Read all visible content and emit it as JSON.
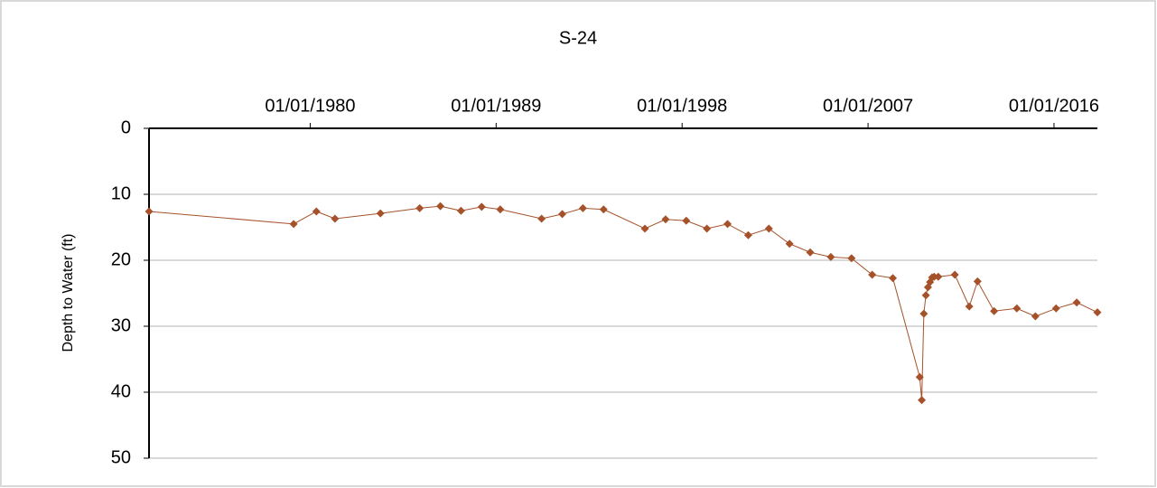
{
  "chart_data": {
    "type": "line",
    "title": "S-24",
    "y_label": "Depth to Water (ft)",
    "x_axis_position": "top",
    "y_inverted": true,
    "grid": true,
    "xlim": [
      1972.2,
      2018.1
    ],
    "xticks": [
      {
        "value": 1980,
        "label": "01/01/1980"
      },
      {
        "value": 1989,
        "label": "01/01/1989"
      },
      {
        "value": 1998,
        "label": "01/01/1998"
      },
      {
        "value": 2007,
        "label": "01/01/2007"
      },
      {
        "value": 2016,
        "label": "01/01/2016"
      }
    ],
    "ylim": [
      0,
      50
    ],
    "yticks": [
      0,
      10,
      20,
      30,
      40,
      50
    ],
    "x": [
      1972.2,
      1979.2,
      1980.3,
      1981.2,
      1983.4,
      1985.3,
      1986.3,
      1987.3,
      1988.3,
      1989.2,
      1991.2,
      1992.2,
      1993.2,
      1994.2,
      1996.2,
      1997.2,
      1998.2,
      1999.2,
      2000.2,
      2001.2,
      2002.2,
      2003.2,
      2004.2,
      2005.2,
      2006.2,
      2007.2,
      2008.2,
      2009.5,
      2009.6,
      2009.7,
      2009.8,
      2009.9,
      2010.0,
      2010.1,
      2010.2,
      2010.4,
      2011.2,
      2011.9,
      2012.3,
      2013.1,
      2014.2,
      2015.1,
      2016.1,
      2017.1,
      2018.1
    ],
    "series": [
      {
        "color": "#a5522b",
        "values": [
          12.6,
          14.5,
          12.6,
          13.7,
          12.9,
          12.1,
          11.8,
          12.5,
          11.9,
          12.3,
          13.7,
          13.0,
          12.1,
          12.3,
          15.2,
          13.8,
          14.0,
          15.2,
          14.5,
          16.2,
          15.2,
          17.5,
          18.8,
          19.5,
          19.7,
          22.2,
          22.7,
          37.7,
          41.2,
          28.1,
          25.3,
          24.1,
          23.3,
          22.6,
          22.5,
          22.5,
          22.2,
          27.0,
          23.2,
          27.7,
          27.3,
          28.5,
          27.3,
          26.4,
          27.9
        ]
      }
    ]
  }
}
